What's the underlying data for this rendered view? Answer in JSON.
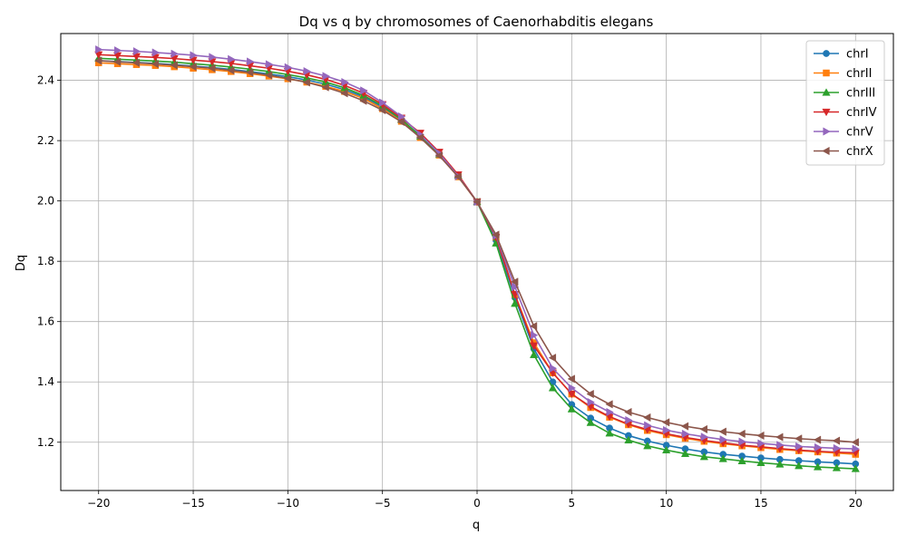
{
  "chart_data": {
    "type": "line",
    "title": "Dq vs q by chromosomes of Caenorhabditis elegans",
    "xlabel": "q",
    "ylabel": "Dq",
    "xlim": [
      -22,
      22
    ],
    "ylim": [
      1.04,
      2.555
    ],
    "xticks": [
      -20,
      -15,
      -10,
      -5,
      0,
      5,
      10,
      15,
      20
    ],
    "xtick_labels": [
      "−20",
      "−15",
      "−10",
      "−5",
      "0",
      "5",
      "10",
      "15",
      "20"
    ],
    "yticks": [
      1.2,
      1.4,
      1.6,
      1.8,
      2.0,
      2.2,
      2.4
    ],
    "ytick_labels": [
      "1.2",
      "1.4",
      "1.6",
      "1.8",
      "2.0",
      "2.2",
      "2.4"
    ],
    "grid": true,
    "legend_position": "top-right",
    "x": [
      -20,
      -19,
      -18,
      -17,
      -16,
      -15,
      -14,
      -13,
      -12,
      -11,
      -10,
      -9,
      -8,
      -7,
      -6,
      -5,
      -4,
      -3,
      -2,
      -1,
      0,
      1,
      2,
      3,
      4,
      5,
      6,
      7,
      8,
      9,
      10,
      11,
      12,
      13,
      14,
      15,
      16,
      17,
      18,
      19,
      20
    ],
    "series": [
      {
        "name": "chrI",
        "color": "#1f77b4",
        "marker": "circle",
        "values": [
          2.465,
          2.462,
          2.459,
          2.456,
          2.452,
          2.447,
          2.442,
          2.436,
          2.429,
          2.421,
          2.412,
          2.401,
          2.387,
          2.369,
          2.345,
          2.311,
          2.267,
          2.215,
          2.155,
          2.085,
          1.997,
          1.87,
          1.68,
          1.51,
          1.4,
          1.325,
          1.28,
          1.247,
          1.222,
          1.204,
          1.19,
          1.178,
          1.168,
          1.16,
          1.154,
          1.148,
          1.143,
          1.139,
          1.135,
          1.132,
          1.128
        ]
      },
      {
        "name": "chrII",
        "color": "#ff7f0e",
        "marker": "square",
        "values": [
          2.458,
          2.455,
          2.452,
          2.449,
          2.445,
          2.44,
          2.435,
          2.429,
          2.422,
          2.414,
          2.405,
          2.394,
          2.38,
          2.363,
          2.34,
          2.306,
          2.264,
          2.21,
          2.152,
          2.08,
          1.997,
          1.88,
          1.69,
          1.53,
          1.43,
          1.36,
          1.315,
          1.283,
          1.258,
          1.239,
          1.225,
          1.213,
          1.203,
          1.195,
          1.188,
          1.182,
          1.176,
          1.172,
          1.168,
          1.164,
          1.16
        ]
      },
      {
        "name": "chrIII",
        "color": "#2ca02c",
        "marker": "triangle-up",
        "values": [
          2.473,
          2.47,
          2.467,
          2.464,
          2.46,
          2.455,
          2.45,
          2.444,
          2.437,
          2.429,
          2.419,
          2.408,
          2.394,
          2.375,
          2.35,
          2.315,
          2.27,
          2.215,
          2.155,
          2.085,
          1.997,
          1.86,
          1.66,
          1.49,
          1.38,
          1.31,
          1.265,
          1.23,
          1.207,
          1.188,
          1.174,
          1.162,
          1.152,
          1.145,
          1.138,
          1.132,
          1.127,
          1.122,
          1.118,
          1.115,
          1.112
        ]
      },
      {
        "name": "chrIV",
        "color": "#d62728",
        "marker": "triangle-down",
        "values": [
          2.485,
          2.482,
          2.479,
          2.476,
          2.472,
          2.467,
          2.462,
          2.456,
          2.448,
          2.44,
          2.43,
          2.418,
          2.403,
          2.383,
          2.357,
          2.32,
          2.275,
          2.225,
          2.162,
          2.087,
          1.997,
          1.88,
          1.69,
          1.52,
          1.43,
          1.36,
          1.318,
          1.285,
          1.26,
          1.242,
          1.228,
          1.216,
          1.206,
          1.198,
          1.19,
          1.185,
          1.179,
          1.174,
          1.17,
          1.167,
          1.165
        ]
      },
      {
        "name": "chrV",
        "color": "#9467bd",
        "marker": "triangle-right",
        "values": [
          2.502,
          2.499,
          2.496,
          2.492,
          2.488,
          2.483,
          2.477,
          2.47,
          2.462,
          2.453,
          2.443,
          2.43,
          2.414,
          2.394,
          2.366,
          2.326,
          2.28,
          2.22,
          2.158,
          2.082,
          1.997,
          1.885,
          1.715,
          1.555,
          1.445,
          1.38,
          1.333,
          1.3,
          1.273,
          1.256,
          1.24,
          1.228,
          1.218,
          1.209,
          1.202,
          1.196,
          1.191,
          1.186,
          1.183,
          1.18,
          1.178
        ]
      },
      {
        "name": "chrX",
        "color": "#8c564b",
        "marker": "triangle-left",
        "values": [
          2.465,
          2.461,
          2.458,
          2.454,
          2.45,
          2.445,
          2.44,
          2.433,
          2.426,
          2.417,
          2.406,
          2.393,
          2.377,
          2.357,
          2.332,
          2.301,
          2.262,
          2.21,
          2.15,
          2.08,
          1.997,
          1.888,
          1.732,
          1.585,
          1.48,
          1.41,
          1.36,
          1.326,
          1.3,
          1.282,
          1.266,
          1.253,
          1.243,
          1.235,
          1.228,
          1.222,
          1.217,
          1.212,
          1.208,
          1.205,
          1.2
        ]
      }
    ]
  }
}
